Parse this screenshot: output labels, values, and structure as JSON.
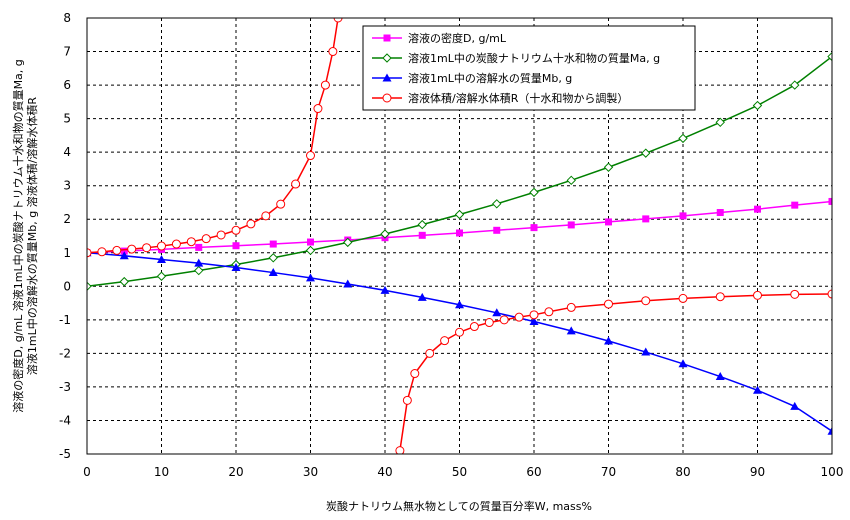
{
  "chart_data": {
    "type": "line",
    "xlabel": "炭酸ナトリウム無水物としての質量百分率W, mass%",
    "ylabel_lines": [
      "溶液の密度D, g/mL   溶液1mL中の炭酸ナトリウム十水和物の質量Ma, g",
      "溶液1mL中の溶解水の質量Mb, g   溶液体積/溶解水体積R"
    ],
    "xlim": [
      0,
      100
    ],
    "ylim": [
      -5,
      8
    ],
    "xticks": [
      0,
      10,
      20,
      30,
      40,
      50,
      60,
      70,
      80,
      90,
      100
    ],
    "yticks": [
      -5,
      -4,
      -3,
      -2,
      -1,
      0,
      1,
      2,
      3,
      4,
      5,
      6,
      7,
      8
    ],
    "grid": true,
    "legend_position": "top-right",
    "series": [
      {
        "name": "溶液の密度D, g/mL",
        "color": "#ff00ff",
        "marker": "square",
        "x": [
          0,
          5,
          10,
          15,
          20,
          25,
          30,
          35,
          40,
          45,
          50,
          55,
          60,
          65,
          70,
          75,
          80,
          85,
          90,
          95,
          100
        ],
        "y": [
          1.0,
          1.05,
          1.1,
          1.16,
          1.21,
          1.26,
          1.32,
          1.38,
          1.45,
          1.52,
          1.59,
          1.67,
          1.75,
          1.83,
          1.92,
          2.01,
          2.1,
          2.2,
          2.3,
          2.42,
          2.53
        ]
      },
      {
        "name": "溶液1mL中の炭酸ナトリウム十水和物の質量Ma, g",
        "color": "#008000",
        "marker": "diamond-open",
        "x": [
          0,
          5,
          10,
          15,
          20,
          25,
          30,
          35,
          40,
          45,
          50,
          55,
          60,
          65,
          70,
          75,
          80,
          85,
          90,
          95,
          100
        ],
        "y": [
          0.0,
          0.14,
          0.3,
          0.47,
          0.65,
          0.85,
          1.07,
          1.31,
          1.56,
          1.84,
          2.14,
          2.46,
          2.8,
          3.16,
          3.55,
          3.97,
          4.41,
          4.89,
          5.39,
          6.0,
          6.85
        ]
      },
      {
        "name": "溶液1mL中の溶解水の質量Mb, g",
        "color": "#0000ff",
        "marker": "triangle",
        "x": [
          0,
          5,
          10,
          15,
          20,
          25,
          30,
          35,
          40,
          45,
          50,
          55,
          60,
          65,
          70,
          75,
          80,
          85,
          90,
          95,
          100
        ],
        "y": [
          1.0,
          0.91,
          0.8,
          0.69,
          0.56,
          0.41,
          0.25,
          0.07,
          -0.12,
          -0.33,
          -0.55,
          -0.79,
          -1.05,
          -1.33,
          -1.63,
          -1.96,
          -2.31,
          -2.69,
          -3.1,
          -3.58,
          -4.32
        ]
      },
      {
        "name": "溶液体積/溶解水体積R（十水和物から調製）",
        "color": "#ff0000",
        "marker": "circle-open",
        "segments": [
          {
            "x": [
              0,
              2,
              4,
              6,
              8,
              10,
              12,
              14,
              16,
              18,
              20,
              22,
              24,
              26,
              28,
              30,
              31,
              32,
              33,
              33.7
            ],
            "y": [
              1.0,
              1.03,
              1.07,
              1.11,
              1.15,
              1.2,
              1.26,
              1.33,
              1.42,
              1.53,
              1.67,
              1.86,
              2.1,
              2.45,
              3.05,
              3.9,
              5.3,
              6.0,
              7.0,
              8.0
            ]
          },
          {
            "x": [
              42,
              43,
              44,
              46,
              48,
              50,
              52,
              54,
              56,
              58,
              60,
              62,
              65,
              70,
              75,
              80,
              85,
              90,
              95,
              100
            ],
            "y": [
              -4.9,
              -3.4,
              -2.6,
              -2.0,
              -1.62,
              -1.37,
              -1.2,
              -1.08,
              -1.0,
              -0.92,
              -0.85,
              -0.76,
              -0.63,
              -0.53,
              -0.43,
              -0.36,
              -0.31,
              -0.27,
              -0.24,
              -0.23
            ]
          }
        ]
      }
    ]
  }
}
